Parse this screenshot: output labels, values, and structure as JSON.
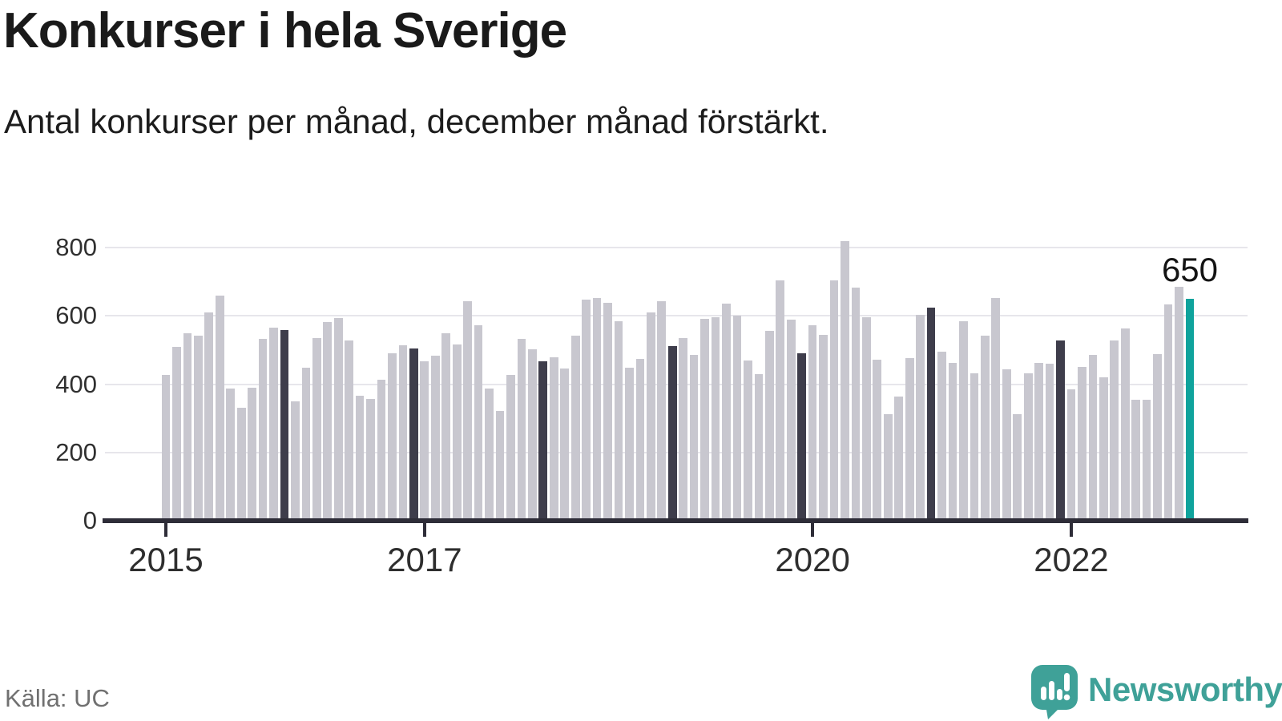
{
  "header": {
    "title": "Konkurser i hela Sverige",
    "subtitle": "Antal konkurser per månad, december månad förstärkt."
  },
  "annotation": {
    "text": "650"
  },
  "footer": {
    "source": "Källa: UC",
    "brand_name": "Newsworthy"
  },
  "colors": {
    "bar": "#c8c7cf",
    "december_bar": "#3e3d4b",
    "highlight_bar": "#0fa39c",
    "grid": "#e7e6eb",
    "axis": "#2e2d38",
    "brand_teal": "#3fa198"
  },
  "chart_data": {
    "type": "bar",
    "title": "Konkurser i hela Sverige",
    "subtitle": "Antal konkurser per månad, december månad förstärkt.",
    "xlabel": "",
    "ylabel": "",
    "ylim": [
      0,
      800
    ],
    "yticks": [
      0,
      200,
      400,
      600,
      800
    ],
    "grid": "horizontal",
    "legend": "none",
    "start_month": "2015-01",
    "end_month": "2022-12",
    "emphasis": "Every December bar is dark; the latest bar (December 2022) is teal and labeled 650",
    "xticks": [
      {
        "label": "2015",
        "month_index": 0
      },
      {
        "label": "2017",
        "month_index": 24
      },
      {
        "label": "2020",
        "month_index": 60
      },
      {
        "label": "2022",
        "month_index": 84
      }
    ],
    "series": [
      {
        "name": "Antal konkurser per månad",
        "values": [
          427,
          509,
          549,
          542,
          611,
          659,
          387,
          332,
          390,
          532,
          565,
          558,
          350,
          448,
          534,
          581,
          594,
          528,
          367,
          356,
          414,
          491,
          514,
          505,
          466,
          484,
          550,
          517,
          642,
          573,
          387,
          322,
          427,
          533,
          502,
          466,
          479,
          447,
          541,
          648,
          652,
          639,
          584,
          449,
          473,
          611,
          643,
          512,
          535,
          485,
          591,
          597,
          636,
          600,
          470,
          429,
          556,
          705,
          589,
          491,
          572,
          545,
          703,
          818,
          682,
          595,
          471,
          311,
          363,
          477,
          602,
          625,
          495,
          463,
          584,
          432,
          541,
          652,
          443,
          313,
          432,
          463,
          461,
          528,
          385,
          450,
          486,
          419,
          528,
          563,
          355,
          355,
          489,
          634,
          685,
          650
        ]
      }
    ],
    "annotated_value": {
      "month": "2022-12",
      "value": 650,
      "label": "650"
    }
  }
}
